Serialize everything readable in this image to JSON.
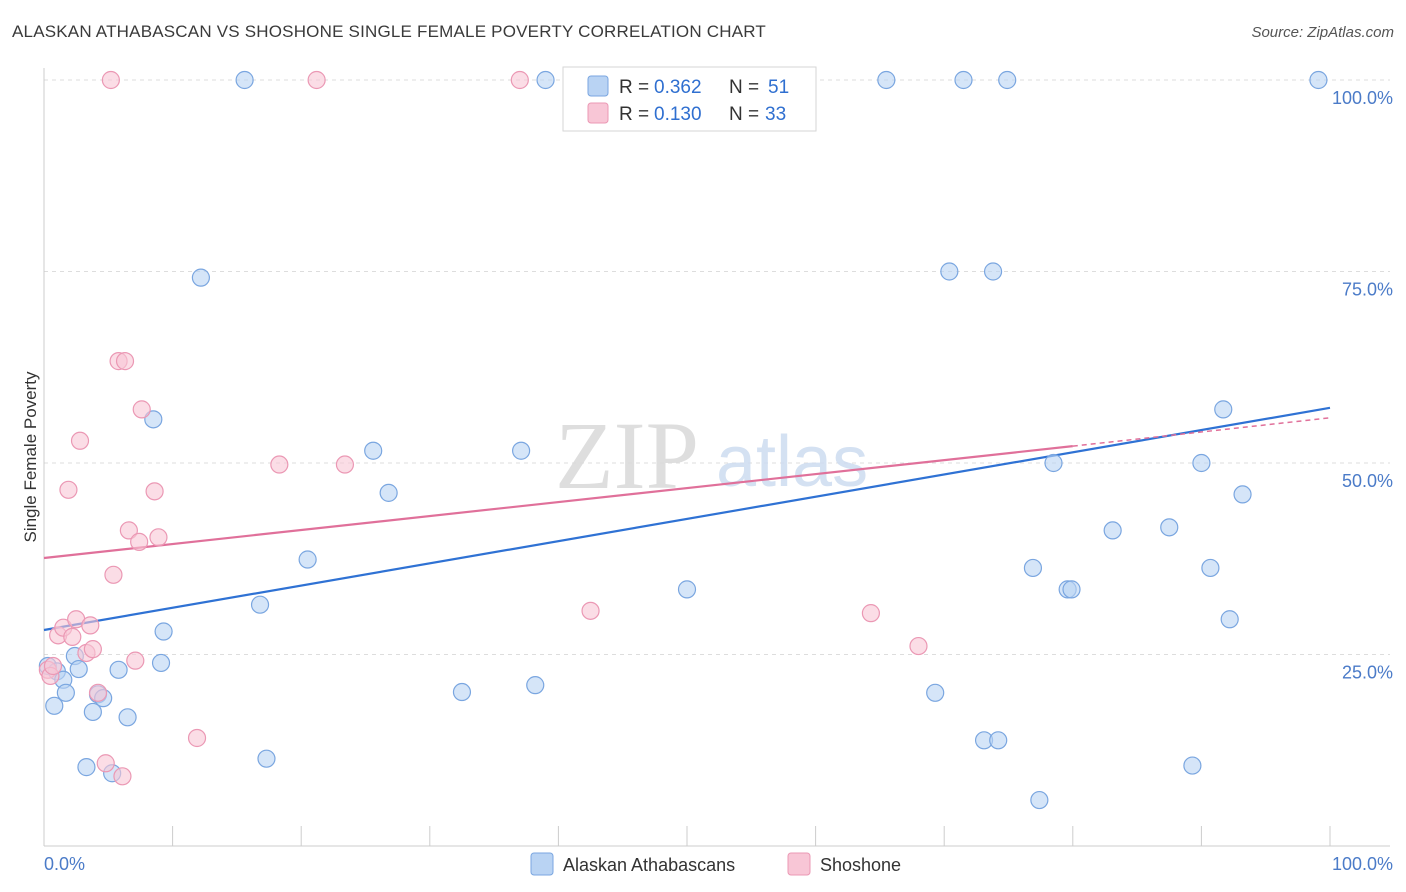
{
  "title": "ALASKAN ATHABASCAN VS SHOSHONE SINGLE FEMALE POVERTY CORRELATION CHART",
  "source": "Source: ZipAtlas.com",
  "watermark": {
    "zip": "ZIP",
    "atlas": "atlas"
  },
  "colors": {
    "blue_fill": "#b9d3f3",
    "blue_stroke": "#7aa6e0",
    "blue_line": "#2f72d4",
    "pink_fill": "#f8c6d6",
    "pink_stroke": "#eb98b4",
    "pink_line": "#e0709a",
    "grid": "#dddddd",
    "tick_text": "#4b7bc8"
  },
  "legend": {
    "rows": [
      {
        "r_label": "R =",
        "r_value": "0.362",
        "n_label": "N =",
        "n_value": "51",
        "series": "blue"
      },
      {
        "r_label": "R =",
        "r_value": "0.130",
        "n_label": "N =",
        "n_value": "33",
        "series": "pink"
      }
    ]
  },
  "chart_data": {
    "type": "scatter",
    "title": "ALASKAN ATHABASCAN VS SHOSHONE SINGLE FEMALE POVERTY CORRELATION CHART",
    "xlabel": "",
    "ylabel": "Single Female Poverty",
    "xlim": [
      0,
      100
    ],
    "ylim": [
      0,
      100
    ],
    "x_tick_labels": [
      "0.0%",
      "100.0%"
    ],
    "y_tick_labels": [
      {
        "value": 25,
        "label": "25.0%"
      },
      {
        "value": 50,
        "label": "50.0%"
      },
      {
        "value": 75,
        "label": "75.0%"
      },
      {
        "value": 100,
        "label": "100.0%"
      }
    ],
    "grid": true,
    "legend_position": "top-center",
    "series": [
      {
        "name": "Alaskan Athabascans",
        "color": "#b9d3f3",
        "trend": {
          "x0": 0,
          "y0": 28.2,
          "x1": 100,
          "y1": 57.2
        },
        "points": [
          [
            0.3,
            23.5
          ],
          [
            0.8,
            18.3
          ],
          [
            1.0,
            22.8
          ],
          [
            1.5,
            21.7
          ],
          [
            1.7,
            20.0
          ],
          [
            2.4,
            24.8
          ],
          [
            2.7,
            23.1
          ],
          [
            3.3,
            10.3
          ],
          [
            3.8,
            17.5
          ],
          [
            4.2,
            19.8
          ],
          [
            4.6,
            19.3
          ],
          [
            5.3,
            9.5
          ],
          [
            5.8,
            23.0
          ],
          [
            6.5,
            16.8
          ],
          [
            8.5,
            55.7
          ],
          [
            9.1,
            23.9
          ],
          [
            9.3,
            28.0
          ],
          [
            12.2,
            74.2
          ],
          [
            15.6,
            100.0
          ],
          [
            16.8,
            31.5
          ],
          [
            17.3,
            11.4
          ],
          [
            20.5,
            37.4
          ],
          [
            25.6,
            51.6
          ],
          [
            26.8,
            46.1
          ],
          [
            32.5,
            20.1
          ],
          [
            37.1,
            51.6
          ],
          [
            38.2,
            21.0
          ],
          [
            39.0,
            100.0
          ],
          [
            50.0,
            33.5
          ],
          [
            65.5,
            100.0
          ],
          [
            69.3,
            20.0
          ],
          [
            70.4,
            75.0
          ],
          [
            71.5,
            100.0
          ],
          [
            73.8,
            75.0
          ],
          [
            73.1,
            13.8
          ],
          [
            74.2,
            13.8
          ],
          [
            74.9,
            100.0
          ],
          [
            76.9,
            36.3
          ],
          [
            77.4,
            6.0
          ],
          [
            78.5,
            50.0
          ],
          [
            79.6,
            33.5
          ],
          [
            79.9,
            33.5
          ],
          [
            83.1,
            41.2
          ],
          [
            87.5,
            41.6
          ],
          [
            89.3,
            10.5
          ],
          [
            90.0,
            50.0
          ],
          [
            90.7,
            36.3
          ],
          [
            91.7,
            57.0
          ],
          [
            92.2,
            29.6
          ],
          [
            93.2,
            45.9
          ],
          [
            99.1,
            100.0
          ]
        ]
      },
      {
        "name": "Shoshone",
        "color": "#f8c6d6",
        "trend": {
          "x0": 0,
          "y0": 37.6,
          "x1": 80,
          "y1": 52.2,
          "dashed_to": {
            "x": 100,
            "y": 55.9
          }
        },
        "points": [
          [
            0.3,
            23.0
          ],
          [
            0.5,
            22.2
          ],
          [
            0.7,
            23.5
          ],
          [
            1.1,
            27.5
          ],
          [
            1.5,
            28.5
          ],
          [
            1.9,
            46.5
          ],
          [
            2.2,
            27.3
          ],
          [
            2.5,
            29.6
          ],
          [
            2.8,
            52.9
          ],
          [
            3.3,
            25.2
          ],
          [
            3.6,
            28.8
          ],
          [
            3.8,
            25.7
          ],
          [
            4.2,
            20.0
          ],
          [
            4.8,
            10.8
          ],
          [
            5.2,
            100.0
          ],
          [
            5.4,
            35.4
          ],
          [
            5.8,
            63.3
          ],
          [
            6.1,
            9.1
          ],
          [
            6.3,
            63.3
          ],
          [
            6.6,
            41.2
          ],
          [
            7.1,
            24.2
          ],
          [
            7.4,
            39.7
          ],
          [
            7.6,
            57.0
          ],
          [
            8.6,
            46.3
          ],
          [
            8.9,
            40.3
          ],
          [
            11.9,
            14.1
          ],
          [
            18.3,
            49.8
          ],
          [
            21.2,
            100.0
          ],
          [
            23.4,
            49.8
          ],
          [
            37.0,
            100.0
          ],
          [
            42.5,
            30.7
          ],
          [
            64.3,
            30.4
          ],
          [
            68.0,
            26.1
          ]
        ]
      }
    ]
  }
}
